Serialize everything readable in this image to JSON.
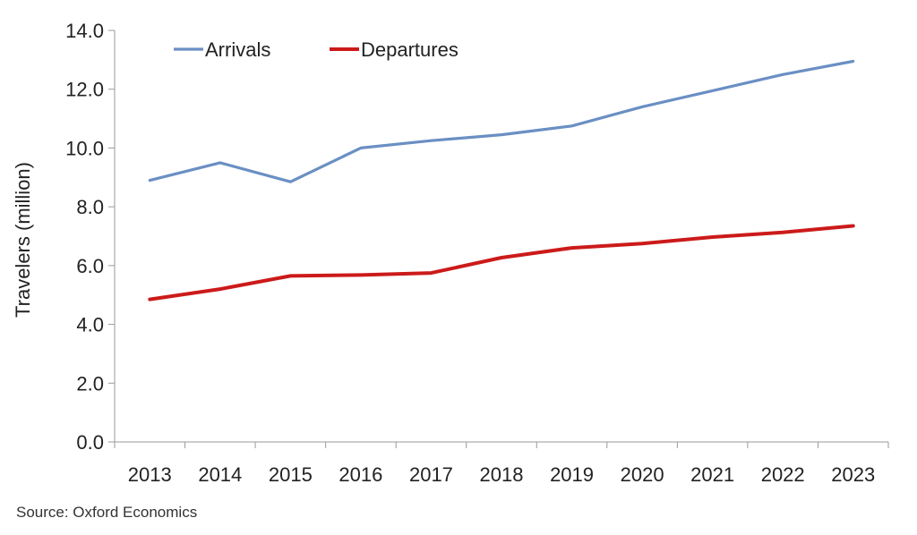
{
  "chart_data": {
    "type": "line",
    "x": [
      "2013",
      "2014",
      "2015",
      "2016",
      "2017",
      "2018",
      "2019",
      "2020",
      "2021",
      "2022",
      "2023"
    ],
    "series": [
      {
        "name": "Arrivals",
        "color": "#6a8fc3",
        "values": [
          8.9,
          9.5,
          8.85,
          10.0,
          10.25,
          10.45,
          10.75,
          11.4,
          11.95,
          12.5,
          12.95
        ]
      },
      {
        "name": "Departures",
        "color": "#cc1a1a",
        "values": [
          4.85,
          5.2,
          5.65,
          5.68,
          5.75,
          6.27,
          6.6,
          6.75,
          6.97,
          7.13,
          7.35
        ]
      }
    ],
    "ylabel": "Travelers (million)",
    "xlabel": "",
    "ylim": [
      0,
      14
    ],
    "yticks": [
      "0.0",
      "2.0",
      "4.0",
      "6.0",
      "8.0",
      "10.0",
      "12.0",
      "14.0"
    ],
    "grid": false,
    "legend": "top-left"
  },
  "source": "Source:  Oxford Economics"
}
